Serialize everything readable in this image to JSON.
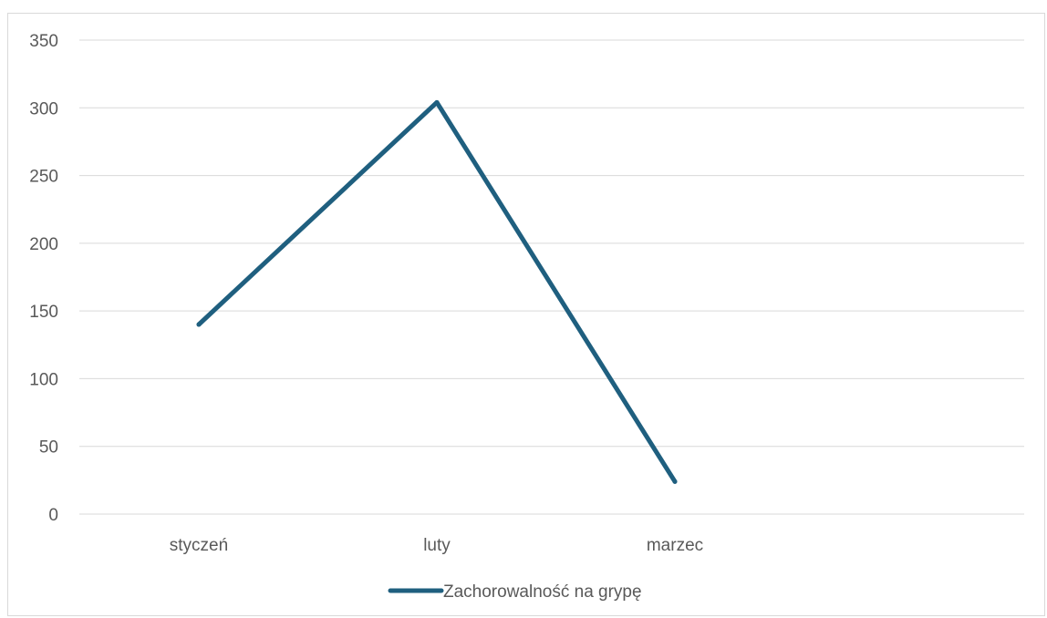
{
  "chart_data": {
    "type": "line",
    "categories": [
      "styczeń",
      "luty",
      "marzec"
    ],
    "series": [
      {
        "name": "Zachorowalność na grypę",
        "values": [
          140,
          304,
          24
        ],
        "color": "#1f5f7f"
      }
    ],
    "yticks": [
      "0",
      "50",
      "100",
      "150",
      "200",
      "250",
      "300",
      "350"
    ],
    "ylim": [
      0,
      350
    ],
    "grid": true,
    "legend_position": "bottom",
    "colors": {
      "gridline": "#d9d9d9",
      "tick_text": "#595959",
      "frame": "#d9d9d9"
    }
  }
}
